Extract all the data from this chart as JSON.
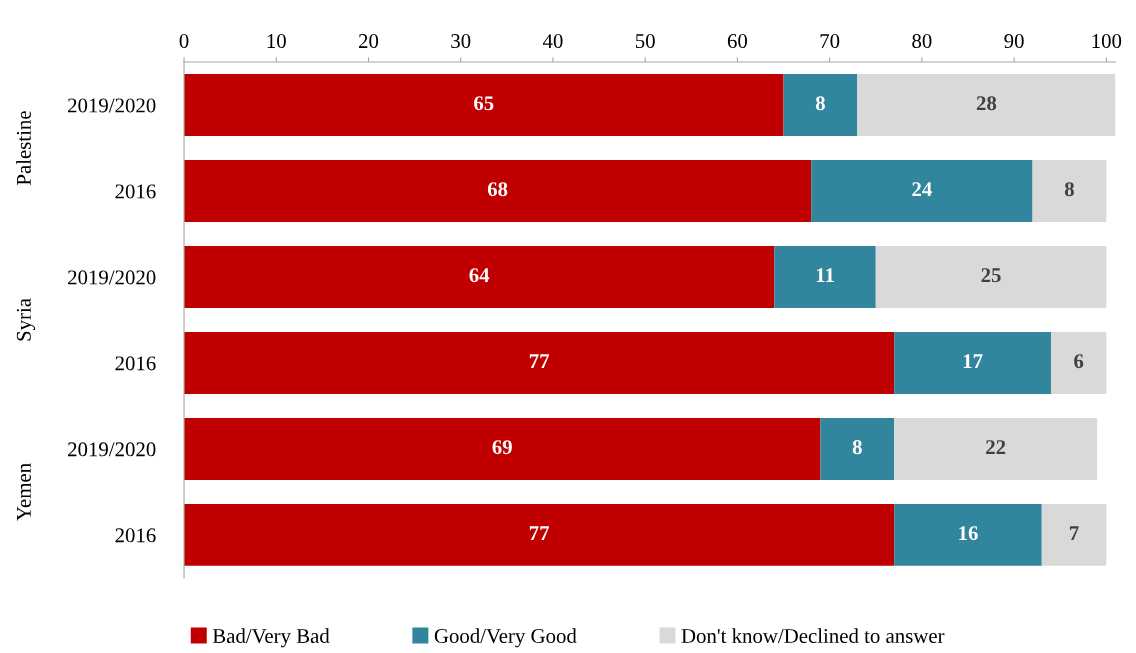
{
  "chart_data": {
    "type": "bar",
    "orientation": "horizontal",
    "stacked": true,
    "categories": [
      "2019/2020",
      "2016",
      "2019/2020",
      "2016",
      "2019/2020",
      "2016"
    ],
    "series": [
      {
        "name": "Bad/Very Bad",
        "color": "#c00000",
        "values": [
          65,
          68,
          64,
          77,
          69,
          77
        ]
      },
      {
        "name": "Good/Very Good",
        "color": "#31859c",
        "values": [
          8,
          24,
          11,
          17,
          8,
          16
        ]
      },
      {
        "name": "Don't know/Declined to answer",
        "color": "#d9d9d9",
        "values": [
          28,
          8,
          25,
          6,
          22,
          7
        ]
      }
    ],
    "annotations": [
      "Palestine",
      "Syria",
      "Yemen"
    ],
    "xlim": [
      0,
      101
    ],
    "xticks": [
      0,
      10,
      20,
      30,
      40,
      50,
      60,
      70,
      80,
      90,
      100
    ],
    "data_labels": true,
    "grid": false,
    "legend": "bottom"
  }
}
